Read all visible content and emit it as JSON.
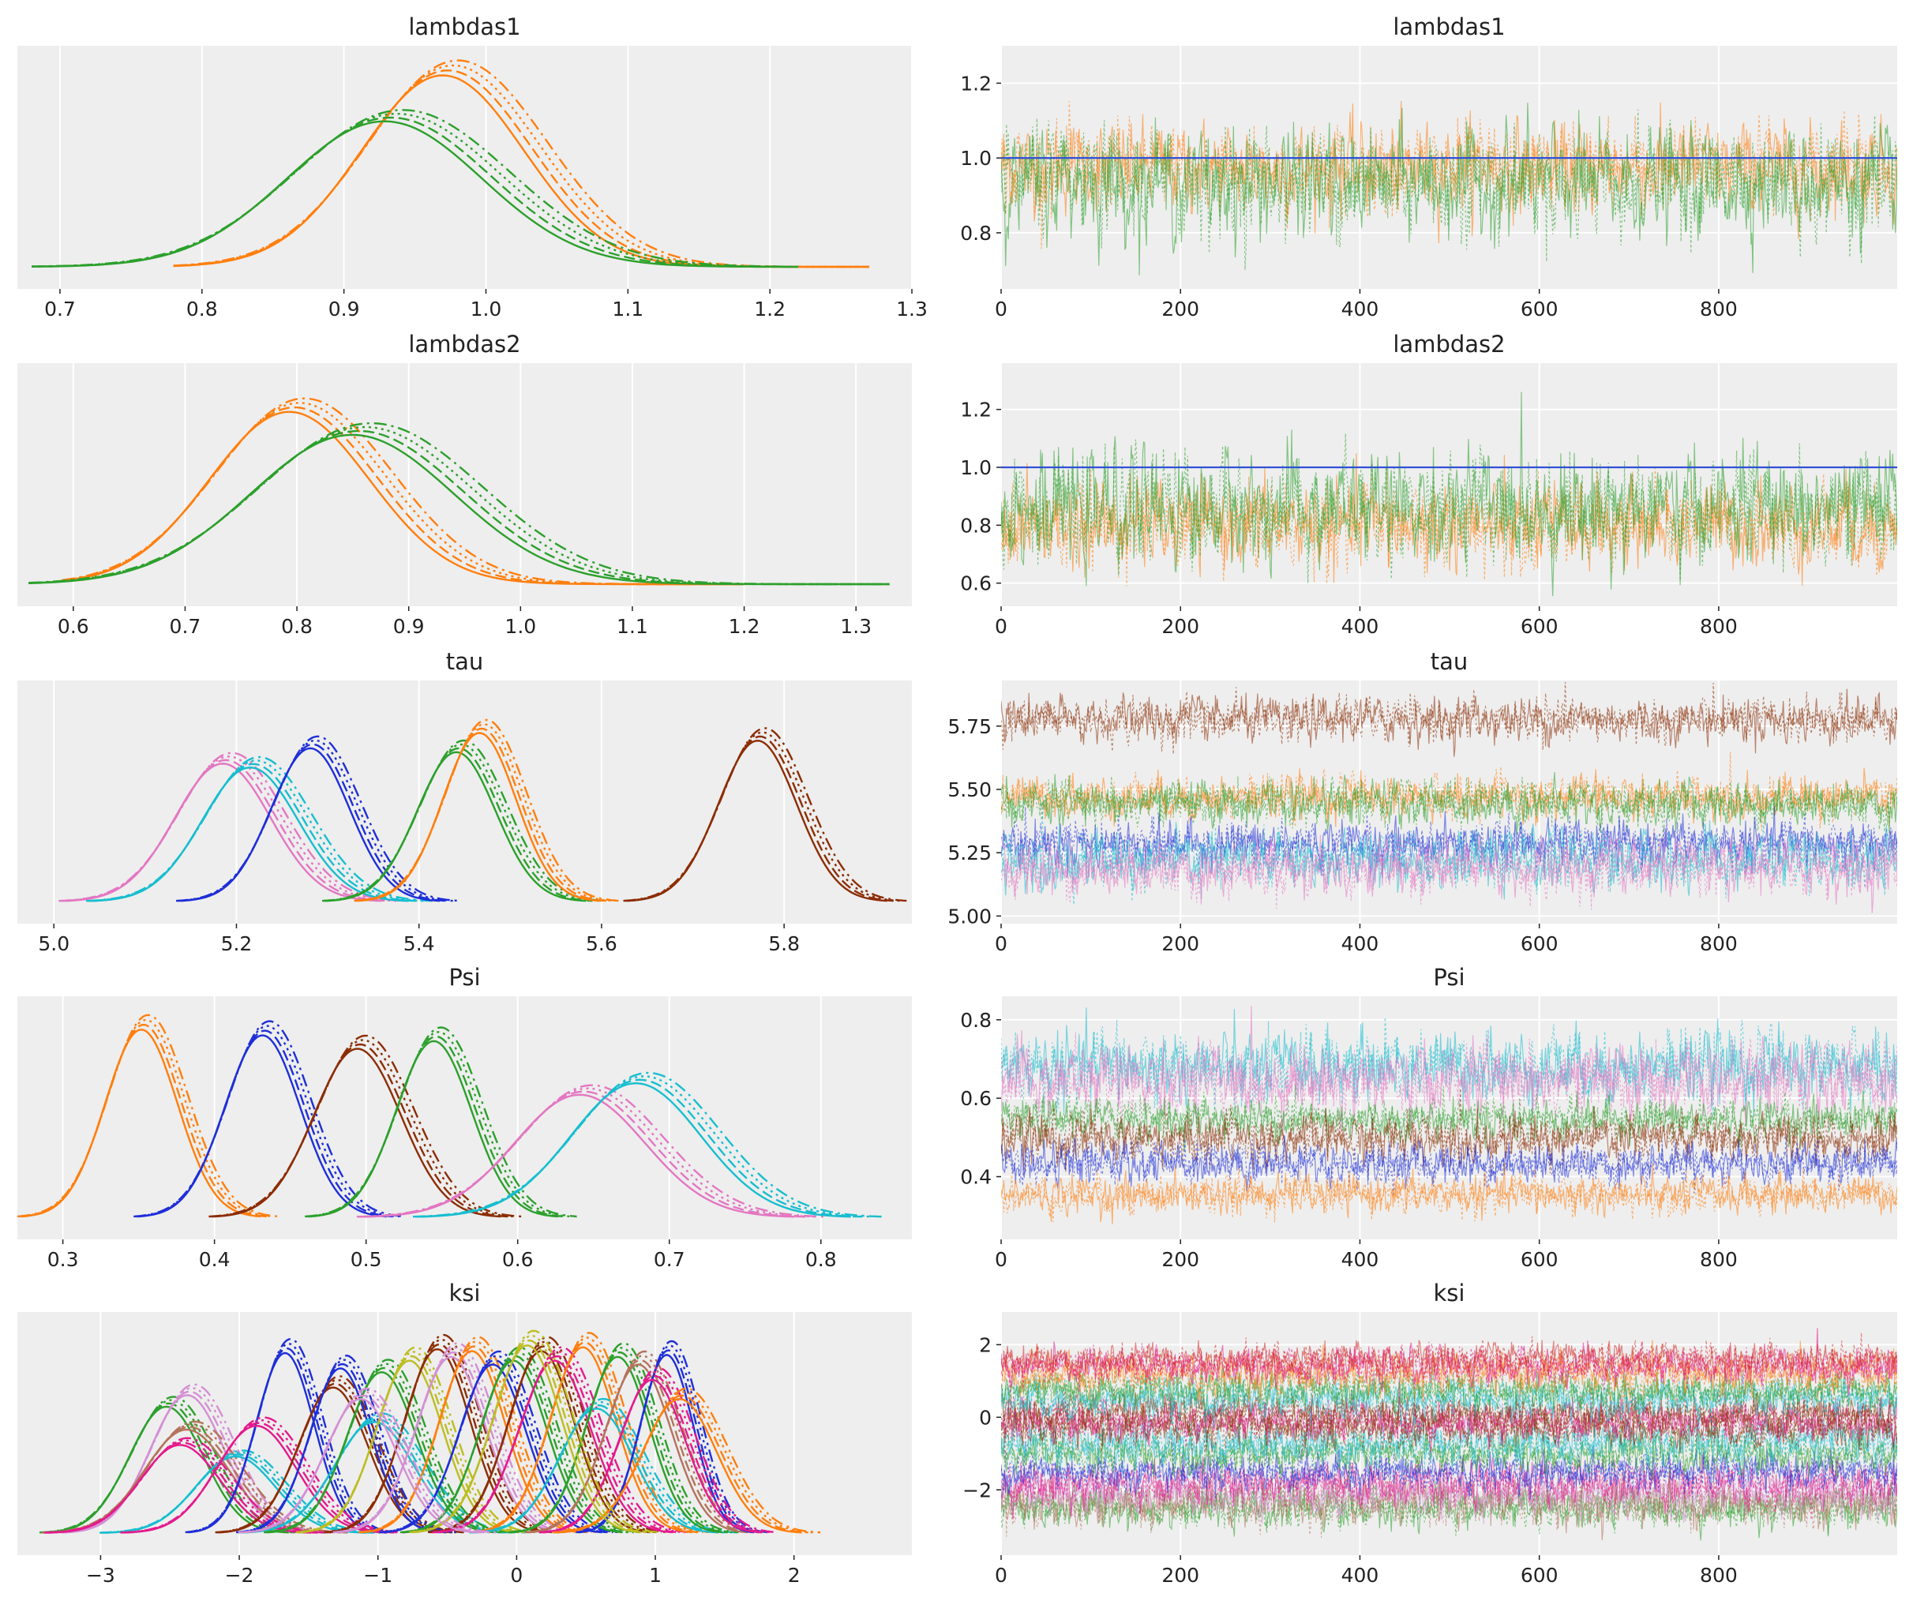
{
  "chart_data": [
    {
      "id": "kde-lambdas1",
      "type": "line",
      "title": "lambdas1",
      "xlim": [
        0.67,
        1.3
      ],
      "xticks": [
        0.7,
        0.8,
        0.9,
        1.0,
        1.1,
        1.2,
        1.3
      ],
      "xtick_labels": [
        "0.7",
        "0.8",
        "0.9",
        "1.0",
        "1.1",
        "1.2",
        "1.3"
      ],
      "grid": true,
      "series": [
        {
          "color": "#ff7f0e",
          "kind": "kde",
          "mu": 0.975,
          "sd": 0.06,
          "peak": 1.0,
          "range": [
            0.78,
            1.27
          ]
        },
        {
          "color": "#2ca02c",
          "kind": "kde",
          "mu": 0.935,
          "sd": 0.072,
          "peak": 0.76,
          "range": [
            0.68,
            1.22
          ]
        }
      ]
    },
    {
      "id": "trace-lambdas1",
      "type": "line",
      "title": "lambdas1",
      "xlim": [
        0,
        999
      ],
      "ylim": [
        0.65,
        1.3
      ],
      "xticks": [
        0,
        200,
        400,
        600,
        800
      ],
      "xtick_labels": [
        "0",
        "200",
        "400",
        "600",
        "800"
      ],
      "yticks": [
        0.8,
        1.0,
        1.2
      ],
      "ytick_labels": [
        "0.8",
        "1.0",
        "1.2"
      ],
      "grid": true,
      "reference_lines": [
        {
          "y": 1.0,
          "color": "#3050d8"
        }
      ],
      "series": [
        {
          "color": "#ff7f0e",
          "kind": "trace",
          "mean": 0.975,
          "sd": 0.06
        },
        {
          "color": "#2ca02c",
          "kind": "trace",
          "mean": 0.935,
          "sd": 0.072
        }
      ]
    },
    {
      "id": "kde-lambdas2",
      "type": "line",
      "title": "lambdas2",
      "xlim": [
        0.55,
        1.35
      ],
      "xticks": [
        0.6,
        0.7,
        0.8,
        0.9,
        1.0,
        1.1,
        1.2,
        1.3
      ],
      "xtick_labels": [
        "0.6",
        "0.7",
        "0.8",
        "0.9",
        "1.0",
        "1.1",
        "1.2",
        "1.3"
      ],
      "grid": true,
      "series": [
        {
          "color": "#ff7f0e",
          "kind": "kde",
          "mu": 0.8,
          "sd": 0.075,
          "peak": 0.9,
          "range": [
            0.59,
            1.2
          ]
        },
        {
          "color": "#2ca02c",
          "kind": "kde",
          "mu": 0.858,
          "sd": 0.095,
          "peak": 0.78,
          "range": [
            0.56,
            1.33
          ]
        }
      ]
    },
    {
      "id": "trace-lambdas2",
      "type": "line",
      "title": "lambdas2",
      "xlim": [
        0,
        999
      ],
      "ylim": [
        0.52,
        1.36
      ],
      "xticks": [
        0,
        200,
        400,
        600,
        800
      ],
      "xtick_labels": [
        "0",
        "200",
        "400",
        "600",
        "800"
      ],
      "yticks": [
        0.6,
        0.8,
        1.0,
        1.2
      ],
      "ytick_labels": [
        "0.6",
        "0.8",
        "1.0",
        "1.2"
      ],
      "grid": true,
      "reference_lines": [
        {
          "y": 1.0,
          "color": "#3050d8"
        }
      ],
      "series": [
        {
          "color": "#ff7f0e",
          "kind": "trace",
          "mean": 0.8,
          "sd": 0.075
        },
        {
          "color": "#2ca02c",
          "kind": "trace",
          "mean": 0.858,
          "sd": 0.095
        }
      ]
    },
    {
      "id": "kde-tau",
      "type": "line",
      "title": "tau",
      "xlim": [
        4.96,
        5.94
      ],
      "xticks": [
        5.0,
        5.2,
        5.4,
        5.6,
        5.8
      ],
      "xtick_labels": [
        "5.0",
        "5.2",
        "5.4",
        "5.6",
        "5.8"
      ],
      "grid": true,
      "series": [
        {
          "color": "#e377c2",
          "kind": "kde",
          "mu": 5.19,
          "sd": 0.055,
          "peak": 0.72
        },
        {
          "color": "#17becf",
          "kind": "kde",
          "mu": 5.22,
          "sd": 0.055,
          "peak": 0.7
        },
        {
          "color": "#1f2fd8",
          "kind": "kde",
          "mu": 5.285,
          "sd": 0.045,
          "peak": 0.8
        },
        {
          "color": "#2ca02c",
          "kind": "kde",
          "mu": 5.445,
          "sd": 0.045,
          "peak": 0.78
        },
        {
          "color": "#ff7f0e",
          "kind": "kde",
          "mu": 5.47,
          "sd": 0.042,
          "peak": 0.88
        },
        {
          "color": "#8c2d04",
          "kind": "kde",
          "mu": 5.775,
          "sd": 0.045,
          "peak": 0.84
        }
      ]
    },
    {
      "id": "trace-tau",
      "type": "line",
      "title": "tau",
      "xlim": [
        0,
        999
      ],
      "ylim": [
        4.97,
        5.93
      ],
      "xticks": [
        0,
        200,
        400,
        600,
        800
      ],
      "xtick_labels": [
        "0",
        "200",
        "400",
        "600",
        "800"
      ],
      "yticks": [
        5.0,
        5.25,
        5.5,
        5.75
      ],
      "ytick_labels": [
        "5.00",
        "5.25",
        "5.50",
        "5.75"
      ],
      "grid": true,
      "series": [
        {
          "color": "#8c2d04",
          "kind": "trace",
          "mean": 5.775,
          "sd": 0.045
        },
        {
          "color": "#ff7f0e",
          "kind": "trace",
          "mean": 5.47,
          "sd": 0.042
        },
        {
          "color": "#2ca02c",
          "kind": "trace",
          "mean": 5.445,
          "sd": 0.045
        },
        {
          "color": "#1f2fd8",
          "kind": "trace",
          "mean": 5.285,
          "sd": 0.045
        },
        {
          "color": "#17becf",
          "kind": "trace",
          "mean": 5.22,
          "sd": 0.055
        },
        {
          "color": "#e377c2",
          "kind": "trace",
          "mean": 5.19,
          "sd": 0.055
        }
      ]
    },
    {
      "id": "kde-psi",
      "type": "line",
      "title": "Psi",
      "xlim": [
        0.27,
        0.86
      ],
      "xticks": [
        0.3,
        0.4,
        0.5,
        0.6,
        0.7,
        0.8
      ],
      "xtick_labels": [
        "0.3",
        "0.4",
        "0.5",
        "0.6",
        "0.7",
        "0.8"
      ],
      "grid": true,
      "series": [
        {
          "color": "#ff7f0e",
          "kind": "kde",
          "mu": 0.354,
          "sd": 0.025,
          "peak": 0.98
        },
        {
          "color": "#1f2fd8",
          "kind": "kde",
          "mu": 0.434,
          "sd": 0.026,
          "peak": 0.95
        },
        {
          "color": "#8c2d04",
          "kind": "kde",
          "mu": 0.497,
          "sd": 0.03,
          "peak": 0.88
        },
        {
          "color": "#2ca02c",
          "kind": "kde",
          "mu": 0.547,
          "sd": 0.026,
          "peak": 0.92
        },
        {
          "color": "#e377c2",
          "kind": "kde",
          "mu": 0.645,
          "sd": 0.045,
          "peak": 0.64
        },
        {
          "color": "#17becf",
          "kind": "kde",
          "mu": 0.682,
          "sd": 0.045,
          "peak": 0.7
        }
      ]
    },
    {
      "id": "trace-psi",
      "type": "line",
      "title": "Psi",
      "xlim": [
        0,
        999
      ],
      "ylim": [
        0.24,
        0.86
      ],
      "xticks": [
        0,
        200,
        400,
        600,
        800
      ],
      "xtick_labels": [
        "0",
        "200",
        "400",
        "600",
        "800"
      ],
      "yticks": [
        0.4,
        0.6,
        0.8
      ],
      "ytick_labels": [
        "0.4",
        "0.6",
        "0.8"
      ],
      "grid": true,
      "series": [
        {
          "color": "#17becf",
          "kind": "trace",
          "mean": 0.682,
          "sd": 0.045
        },
        {
          "color": "#e377c2",
          "kind": "trace",
          "mean": 0.645,
          "sd": 0.045
        },
        {
          "color": "#2ca02c",
          "kind": "trace",
          "mean": 0.547,
          "sd": 0.026
        },
        {
          "color": "#8c2d04",
          "kind": "trace",
          "mean": 0.497,
          "sd": 0.03
        },
        {
          "color": "#1f2fd8",
          "kind": "trace",
          "mean": 0.434,
          "sd": 0.026
        },
        {
          "color": "#ff7f0e",
          "kind": "trace",
          "mean": 0.354,
          "sd": 0.025
        }
      ]
    },
    {
      "id": "kde-ksi",
      "type": "line",
      "title": "ksi",
      "xlim": [
        -3.6,
        2.85
      ],
      "xticks": [
        -3,
        -2,
        -1,
        0,
        1,
        2
      ],
      "xtick_labels": [
        "−3",
        "−2",
        "−1",
        "0",
        "1",
        "2"
      ],
      "grid": true,
      "series": [
        {
          "color": "#2ca02c",
          "kind": "kde",
          "mu": -2.5,
          "sd": 0.28,
          "peak": 0.66
        },
        {
          "color": "#d48fd4",
          "kind": "kde",
          "mu": -2.35,
          "sd": 0.28,
          "peak": 0.72
        },
        {
          "color": "#b5735c",
          "kind": "kde",
          "mu": -2.35,
          "sd": 0.32,
          "peak": 0.54
        },
        {
          "color": "#e41a8c",
          "kind": "kde",
          "mu": -2.4,
          "sd": 0.3,
          "peak": 0.46
        },
        {
          "color": "#17becf",
          "kind": "kde",
          "mu": -2.0,
          "sd": 0.3,
          "peak": 0.4
        },
        {
          "color": "#1f2fd8",
          "kind": "kde",
          "mu": -1.65,
          "sd": 0.22,
          "peak": 0.94
        },
        {
          "color": "#e41a8c",
          "kind": "kde",
          "mu": -1.85,
          "sd": 0.3,
          "peak": 0.56
        },
        {
          "color": "#8c2d04",
          "kind": "kde",
          "mu": -1.3,
          "sd": 0.26,
          "peak": 0.76
        },
        {
          "color": "#1f2fd8",
          "kind": "kde",
          "mu": -1.25,
          "sd": 0.23,
          "peak": 0.86
        },
        {
          "color": "#17becf",
          "kind": "kde",
          "mu": -1.0,
          "sd": 0.3,
          "peak": 0.58
        },
        {
          "color": "#2ca02c",
          "kind": "kde",
          "mu": -0.95,
          "sd": 0.26,
          "peak": 0.84
        },
        {
          "color": "#bcbd22",
          "kind": "kde",
          "mu": -0.75,
          "sd": 0.25,
          "peak": 0.9
        },
        {
          "color": "#8c2d04",
          "kind": "kde",
          "mu": -0.55,
          "sd": 0.25,
          "peak": 0.96
        },
        {
          "color": "#d48fd4",
          "kind": "kde",
          "mu": -0.45,
          "sd": 0.26,
          "peak": 0.92
        },
        {
          "color": "#ff7f0e",
          "kind": "kde",
          "mu": -0.3,
          "sd": 0.25,
          "peak": 0.95
        },
        {
          "color": "#1f2fd8",
          "kind": "kde",
          "mu": -0.15,
          "sd": 0.25,
          "peak": 0.88
        },
        {
          "color": "#2ca02c",
          "kind": "kde",
          "mu": 0.0,
          "sd": 0.25,
          "peak": 0.9
        },
        {
          "color": "#8c2d04",
          "kind": "kde",
          "mu": 0.2,
          "sd": 0.25,
          "peak": 0.95
        },
        {
          "color": "#e41a8c",
          "kind": "kde",
          "mu": 0.3,
          "sd": 0.27,
          "peak": 0.9
        },
        {
          "color": "#ff7f0e",
          "kind": "kde",
          "mu": 0.5,
          "sd": 0.25,
          "peak": 0.97
        },
        {
          "color": "#17becf",
          "kind": "kde",
          "mu": 0.6,
          "sd": 0.28,
          "peak": 0.65
        },
        {
          "color": "#2ca02c",
          "kind": "kde",
          "mu": 0.75,
          "sd": 0.24,
          "peak": 0.92
        },
        {
          "color": "#b5735c",
          "kind": "kde",
          "mu": 0.9,
          "sd": 0.25,
          "peak": 0.88
        },
        {
          "color": "#1f2fd8",
          "kind": "kde",
          "mu": 1.1,
          "sd": 0.2,
          "peak": 0.93
        },
        {
          "color": "#e41a8c",
          "kind": "kde",
          "mu": 1.0,
          "sd": 0.25,
          "peak": 0.8
        },
        {
          "color": "#ff7f0e",
          "kind": "kde",
          "mu": 1.2,
          "sd": 0.28,
          "peak": 0.7
        },
        {
          "color": "#bcbd22",
          "kind": "kde",
          "mu": 0.1,
          "sd": 0.26,
          "peak": 0.98
        },
        {
          "color": "#d48fd4",
          "kind": "kde",
          "mu": -1.1,
          "sd": 0.27,
          "peak": 0.7
        }
      ]
    },
    {
      "id": "trace-ksi",
      "type": "line",
      "title": "ksi",
      "xlim": [
        0,
        999
      ],
      "ylim": [
        -3.8,
        2.9
      ],
      "xticks": [
        0,
        200,
        400,
        600,
        800
      ],
      "xtick_labels": [
        "0",
        "200",
        "400",
        "600",
        "800"
      ],
      "yticks": [
        -2,
        0,
        2
      ],
      "ytick_labels": [
        "−2",
        "0",
        "2"
      ],
      "grid": true,
      "series": [
        {
          "color": "#2ca02c",
          "kind": "trace",
          "mean": -2.5,
          "sd": 0.28
        },
        {
          "color": "#b5735c",
          "kind": "trace",
          "mean": -2.35,
          "sd": 0.32
        },
        {
          "color": "#d48fd4",
          "kind": "trace",
          "mean": -2.1,
          "sd": 0.3
        },
        {
          "color": "#e41a8c",
          "kind": "trace",
          "mean": -1.85,
          "sd": 0.3
        },
        {
          "color": "#1f2fd8",
          "kind": "trace",
          "mean": -1.5,
          "sd": 0.25
        },
        {
          "color": "#2ca02c",
          "kind": "trace",
          "mean": -1.0,
          "sd": 0.26
        },
        {
          "color": "#17becf",
          "kind": "trace",
          "mean": -0.7,
          "sd": 0.3
        },
        {
          "color": "#8c2d04",
          "kind": "trace",
          "mean": -0.3,
          "sd": 0.25
        },
        {
          "color": "#e41a8c",
          "kind": "trace",
          "mean": -0.1,
          "sd": 0.27
        },
        {
          "color": "#8c2d04",
          "kind": "trace",
          "mean": 0.1,
          "sd": 0.25
        },
        {
          "color": "#17becf",
          "kind": "trace",
          "mean": 0.5,
          "sd": 0.28
        },
        {
          "color": "#2ca02c",
          "kind": "trace",
          "mean": 0.75,
          "sd": 0.24
        },
        {
          "color": "#ff7f0e",
          "kind": "trace",
          "mean": 1.2,
          "sd": 0.28
        },
        {
          "color": "#e41a8c",
          "kind": "trace",
          "mean": 1.4,
          "sd": 0.25
        },
        {
          "color": "#d62728",
          "kind": "trace",
          "mean": 1.6,
          "sd": 0.22
        }
      ]
    }
  ]
}
